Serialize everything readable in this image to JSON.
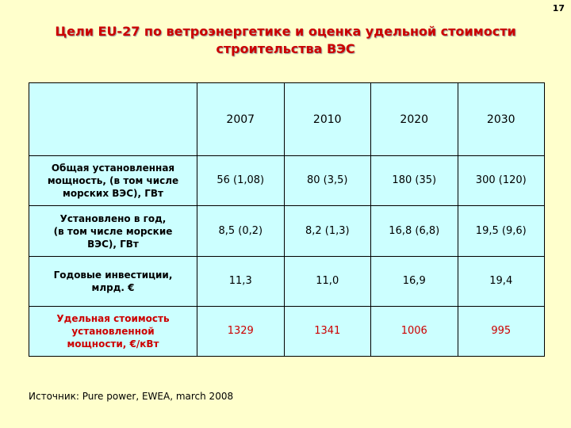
{
  "page_number": "17",
  "title": {
    "line1": "Цели EU-27 по ветроэнергетике и оценка удельной стоимости",
    "line2": "строительства ВЭС"
  },
  "table": {
    "corner": "",
    "years": [
      "2007",
      "2010",
      "2020",
      "2030"
    ],
    "rows": [
      {
        "label_lines": [
          "Общая установленная",
          "мощность, (в том числе",
          "морских ВЭС), ГВт"
        ],
        "values": [
          "56 (1,08)",
          "80 (3,5)",
          "180 (35)",
          "300 (120)"
        ]
      },
      {
        "label_lines": [
          "Установлено в год,",
          "(в том числе морские",
          "ВЭС), ГВт"
        ],
        "values": [
          "8,5 (0,2)",
          "8,2 (1,3)",
          "16,8 (6,8)",
          "19,5 (9,6)"
        ]
      },
      {
        "label_lines": [
          "Годовые инвестиции,",
          "млрд. €"
        ],
        "values": [
          "11,3",
          "11,0",
          "16,9",
          "19,4"
        ]
      },
      {
        "label_lines": [
          "Удельная стоимость",
          "установленной",
          "мощности, €/кВт"
        ],
        "values": [
          "1329",
          "1341",
          "1006",
          "995"
        ]
      }
    ]
  },
  "source": "Источник: Pure power, EWEA, march 2008",
  "colors": {
    "background": "#FFFFCC",
    "table_fill": "#CCFFFF",
    "accent_red": "#CC0000"
  }
}
